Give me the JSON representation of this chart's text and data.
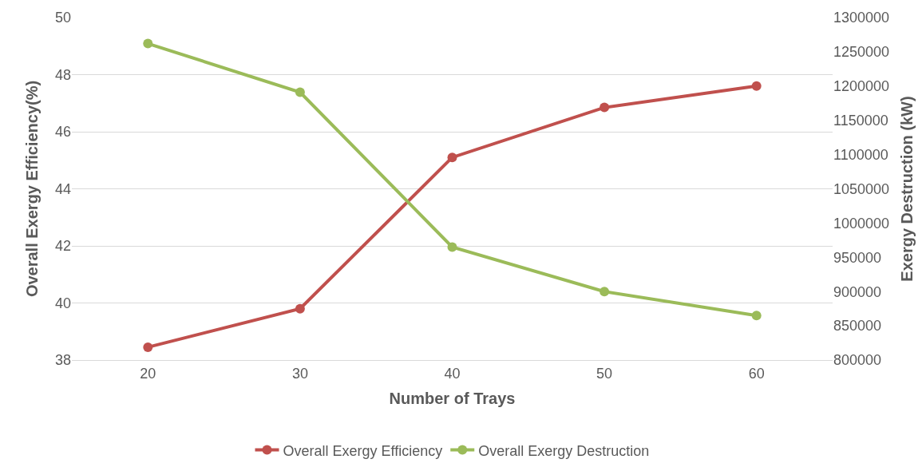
{
  "chart_data": {
    "type": "line",
    "xlabel": "Number of Trays",
    "ylabel": "Overall Exergy Efficiency(%)",
    "y2label": "Exergy Destruction (kW)",
    "categories": [
      "20",
      "30",
      "40",
      "50",
      "60"
    ],
    "series": [
      {
        "name": "Overall Exergy Efficiency",
        "color": "#c0504d",
        "values": [
          38.45,
          39.8,
          45.1,
          46.85,
          47.6
        ]
      },
      {
        "name": "Overall Exergy Destruction",
        "color": "#9bbb59",
        "axis": "y2",
        "values": [
          1262000,
          1191000,
          965000,
          900000,
          865000
        ]
      }
    ],
    "ylim": [
      38,
      50
    ],
    "yticks": [
      38,
      40,
      42,
      44,
      46,
      48,
      50
    ],
    "y2lim": [
      800000,
      1300000
    ],
    "y2ticks": [
      800000,
      850000,
      900000,
      950000,
      1000000,
      1050000,
      1100000,
      1150000,
      1200000,
      1250000,
      1300000
    ],
    "grid": "y",
    "legend": "bottom",
    "marker": "circle",
    "line_style": "solid"
  }
}
